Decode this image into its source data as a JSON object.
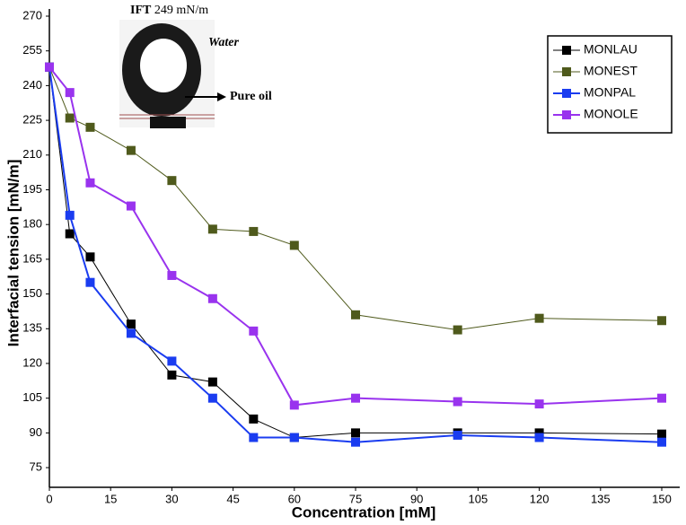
{
  "chart_data": {
    "type": "line",
    "x_label": "Concentration [mM]",
    "y_label": "Interfacial tension [mN/m]",
    "x": [
      0,
      5,
      10,
      20,
      30,
      40,
      50,
      60,
      75,
      100,
      120,
      150
    ],
    "series": [
      {
        "name": "MONLAU",
        "color": "#000000",
        "values": [
          248,
          176,
          166,
          137,
          115,
          112,
          96,
          88,
          90,
          90,
          90,
          89.5
        ]
      },
      {
        "name": "MONEST",
        "color": "#4f5a1c",
        "values": [
          248,
          226,
          222,
          212,
          199,
          178,
          177,
          171,
          141,
          134.5,
          139.5,
          138.5
        ]
      },
      {
        "name": "MONPAL",
        "color": "#1a3cf0",
        "values": [
          248,
          184,
          155,
          133,
          121,
          105,
          88,
          88,
          86,
          89,
          88,
          86
        ]
      },
      {
        "name": "MONOLE",
        "color": "#9933ee",
        "values": [
          248,
          237,
          198,
          188,
          158,
          148,
          134,
          102,
          105,
          103.5,
          102.5,
          105
        ]
      }
    ],
    "xlim": [
      0,
      150
    ],
    "xticks": [
      0,
      15,
      30,
      45,
      60,
      75,
      90,
      105,
      120,
      135,
      150
    ],
    "ylim": [
      66.5,
      270
    ],
    "yticks": [
      75,
      90,
      105,
      120,
      135,
      150,
      165,
      180,
      195,
      210,
      225,
      240,
      255,
      270
    ],
    "legend": "upper right",
    "inset": {
      "ift_label": "IFT",
      "ift_value": "249 mN/m",
      "water": "Water",
      "oil": "Pure oil"
    }
  }
}
